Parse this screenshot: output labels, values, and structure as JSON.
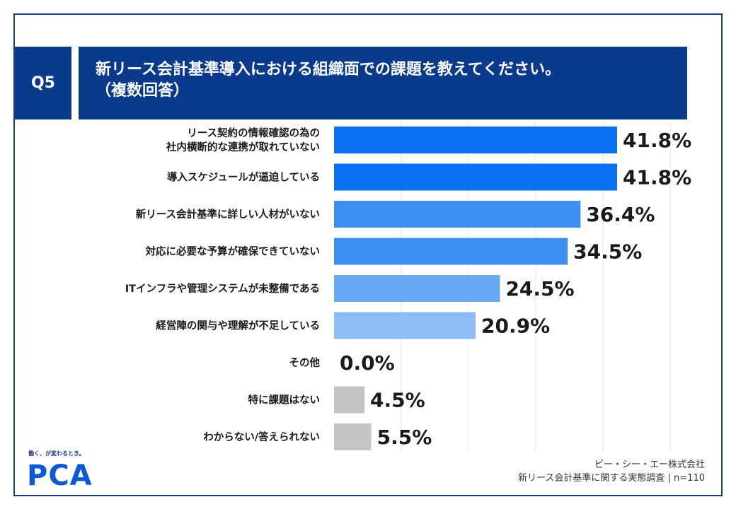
{
  "question": "Q5",
  "title_lines": [
    "新リース会計基準導入における組織面での課題を教えてください。",
    "（複数回答）"
  ],
  "colors": {
    "header_bg": "#0a3a8c",
    "bar_top": "#0a6ff0",
    "bar_mid": "#3d8ef2",
    "bar_light": "#69a8f5",
    "bar_lighter": "#8dbcf7",
    "bar_gray": "#c4c4c4"
  },
  "chart_data": {
    "type": "bar",
    "orientation": "horizontal",
    "categories": [
      [
        "リース契約の情報確認の為の",
        "社内横断的な連携が取れていない"
      ],
      [
        "導入スケジュールが逼迫している"
      ],
      [
        "新リース会計基準に詳しい人材がいない"
      ],
      [
        "対応に必要な予算が確保できていない"
      ],
      [
        "ITインフラや管理システムが未整備である"
      ],
      [
        "経営陣の関与や理解が不足している"
      ],
      [
        "その他"
      ],
      [
        "特に課題はない"
      ],
      [
        "わからない/答えられない"
      ]
    ],
    "values": [
      41.8,
      41.8,
      36.4,
      34.5,
      24.5,
      20.9,
      0.0,
      4.5,
      5.5
    ],
    "value_labels": [
      "41.8%",
      "41.8%",
      "36.4%",
      "34.5%",
      "24.5%",
      "20.9%",
      "0.0%",
      "4.5%",
      "5.5%"
    ],
    "bar_colors": [
      "bar_top",
      "bar_top",
      "bar_mid",
      "bar_mid",
      "bar_light",
      "bar_lighter",
      "bar_lighter",
      "bar_gray",
      "bar_gray"
    ],
    "xlim": [
      0,
      50
    ],
    "grid": true,
    "legend": "none"
  },
  "logo": {
    "tagline": "働く、が変わるとき。",
    "text": "PCA"
  },
  "source_lines": [
    "ビー・シー・エー株式会社",
    "新リース会計基準に関する実態調査 | n=110"
  ]
}
